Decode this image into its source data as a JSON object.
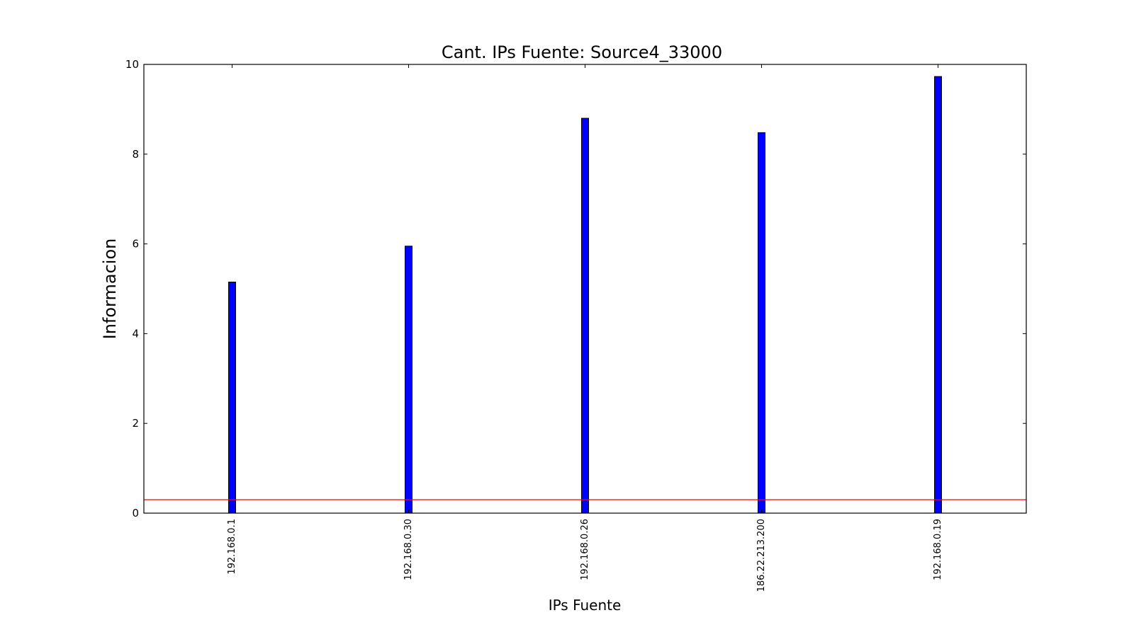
{
  "chart_data": {
    "type": "bar",
    "title": "Cant. IPs Fuente: Source4_33000",
    "xlabel": "IPs Fuente",
    "ylabel": "Informacion",
    "categories": [
      "192.168.0.1",
      "192.168.0.30",
      "192.168.0.26",
      "186.22.213.200",
      "192.168.0.19"
    ],
    "values": [
      5.15,
      5.95,
      8.8,
      8.48,
      9.73
    ],
    "ylim": [
      0,
      10
    ],
    "yticks": [
      0,
      2,
      4,
      6,
      8,
      10
    ],
    "threshold_line": 0.3,
    "grid": false,
    "bar_color": "#0000ff",
    "line_color": "#ff0000"
  }
}
